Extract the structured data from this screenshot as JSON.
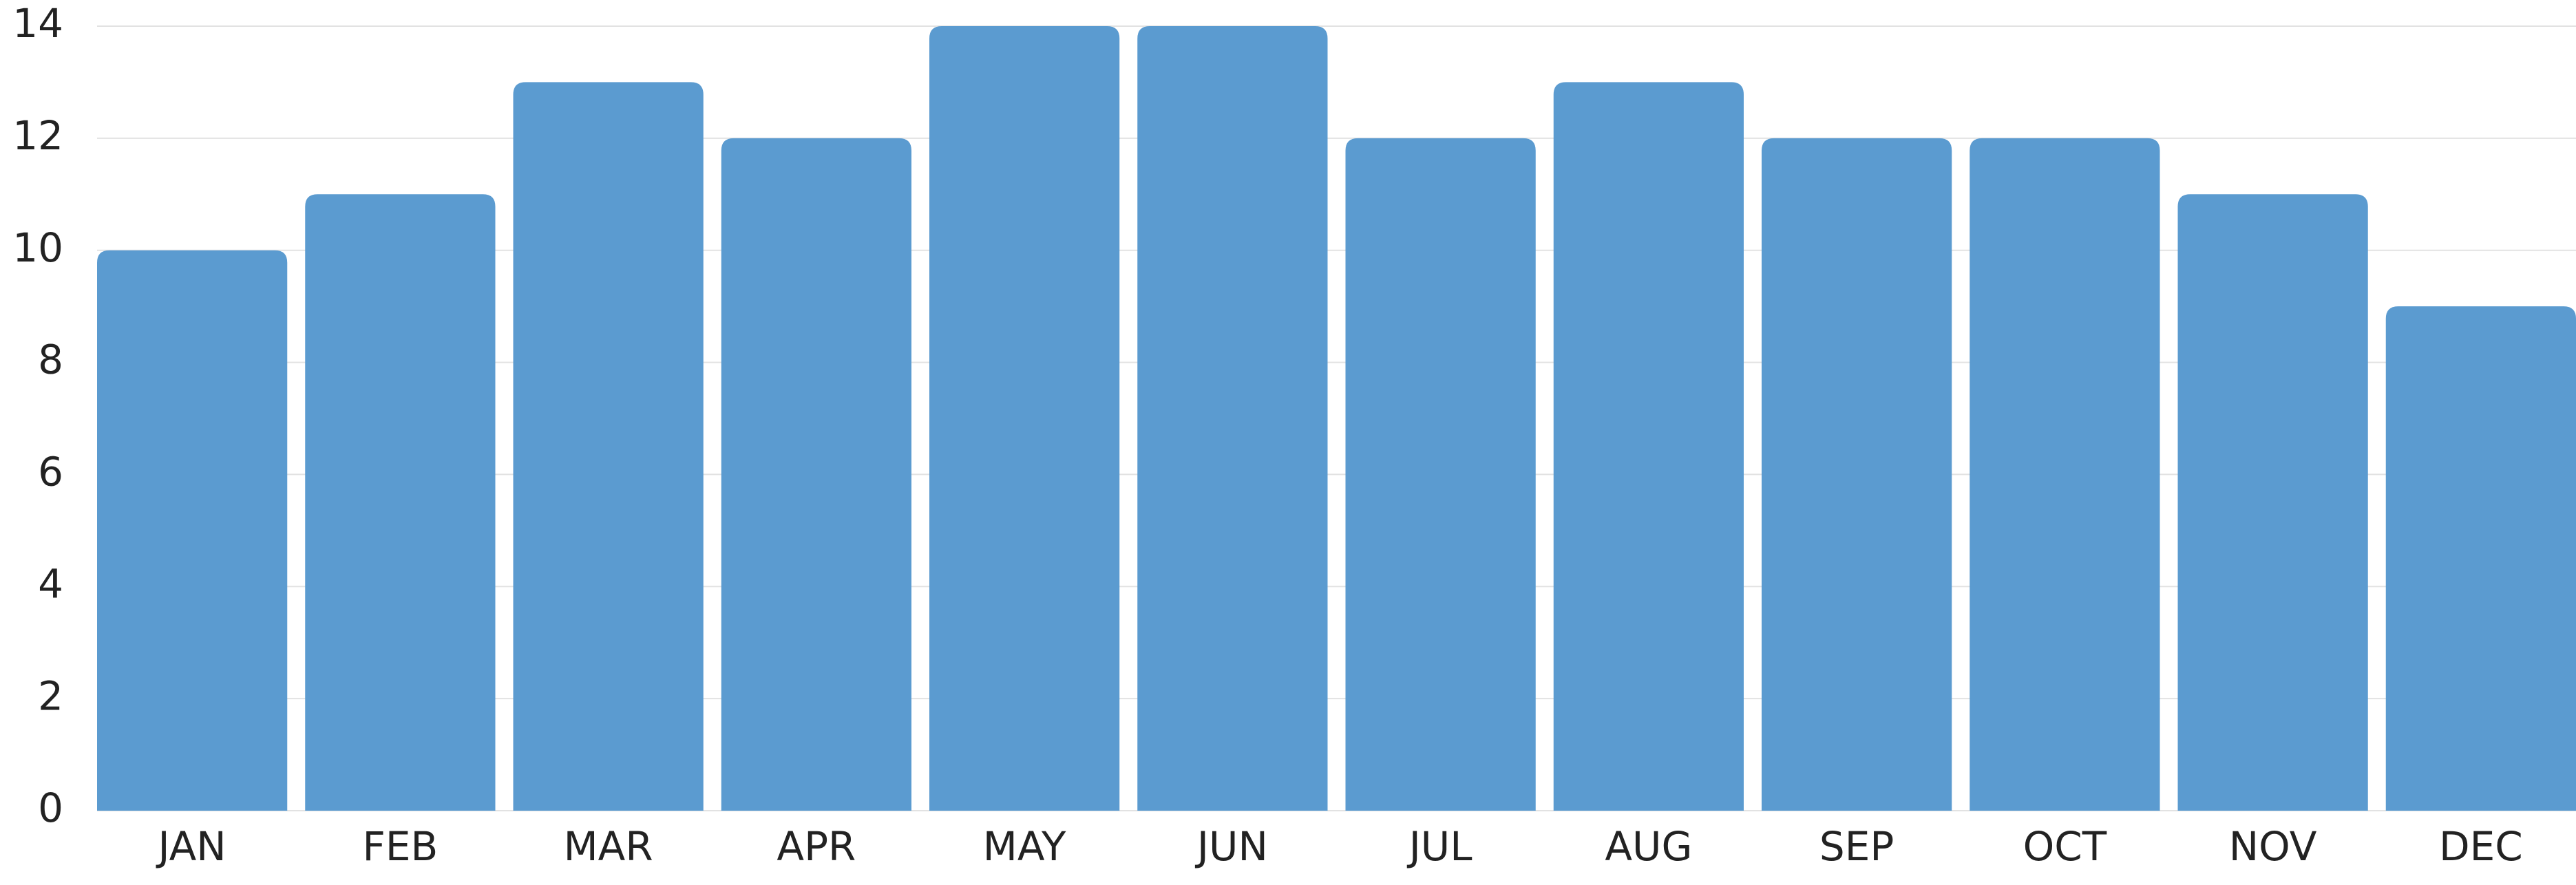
{
  "chart_data": {
    "type": "bar",
    "categories": [
      "JAN",
      "FEB",
      "MAR",
      "APR",
      "MAY",
      "JUN",
      "JUL",
      "AUG",
      "SEP",
      "OCT",
      "NOV",
      "DEC"
    ],
    "values": [
      10,
      11,
      13,
      12,
      14,
      14,
      12,
      13,
      12,
      12,
      11,
      9
    ],
    "color": "#5b9bd0",
    "ylim": [
      0,
      14
    ],
    "yticks": [
      0,
      2,
      4,
      6,
      8,
      10,
      12,
      14
    ],
    "grid": true
  }
}
